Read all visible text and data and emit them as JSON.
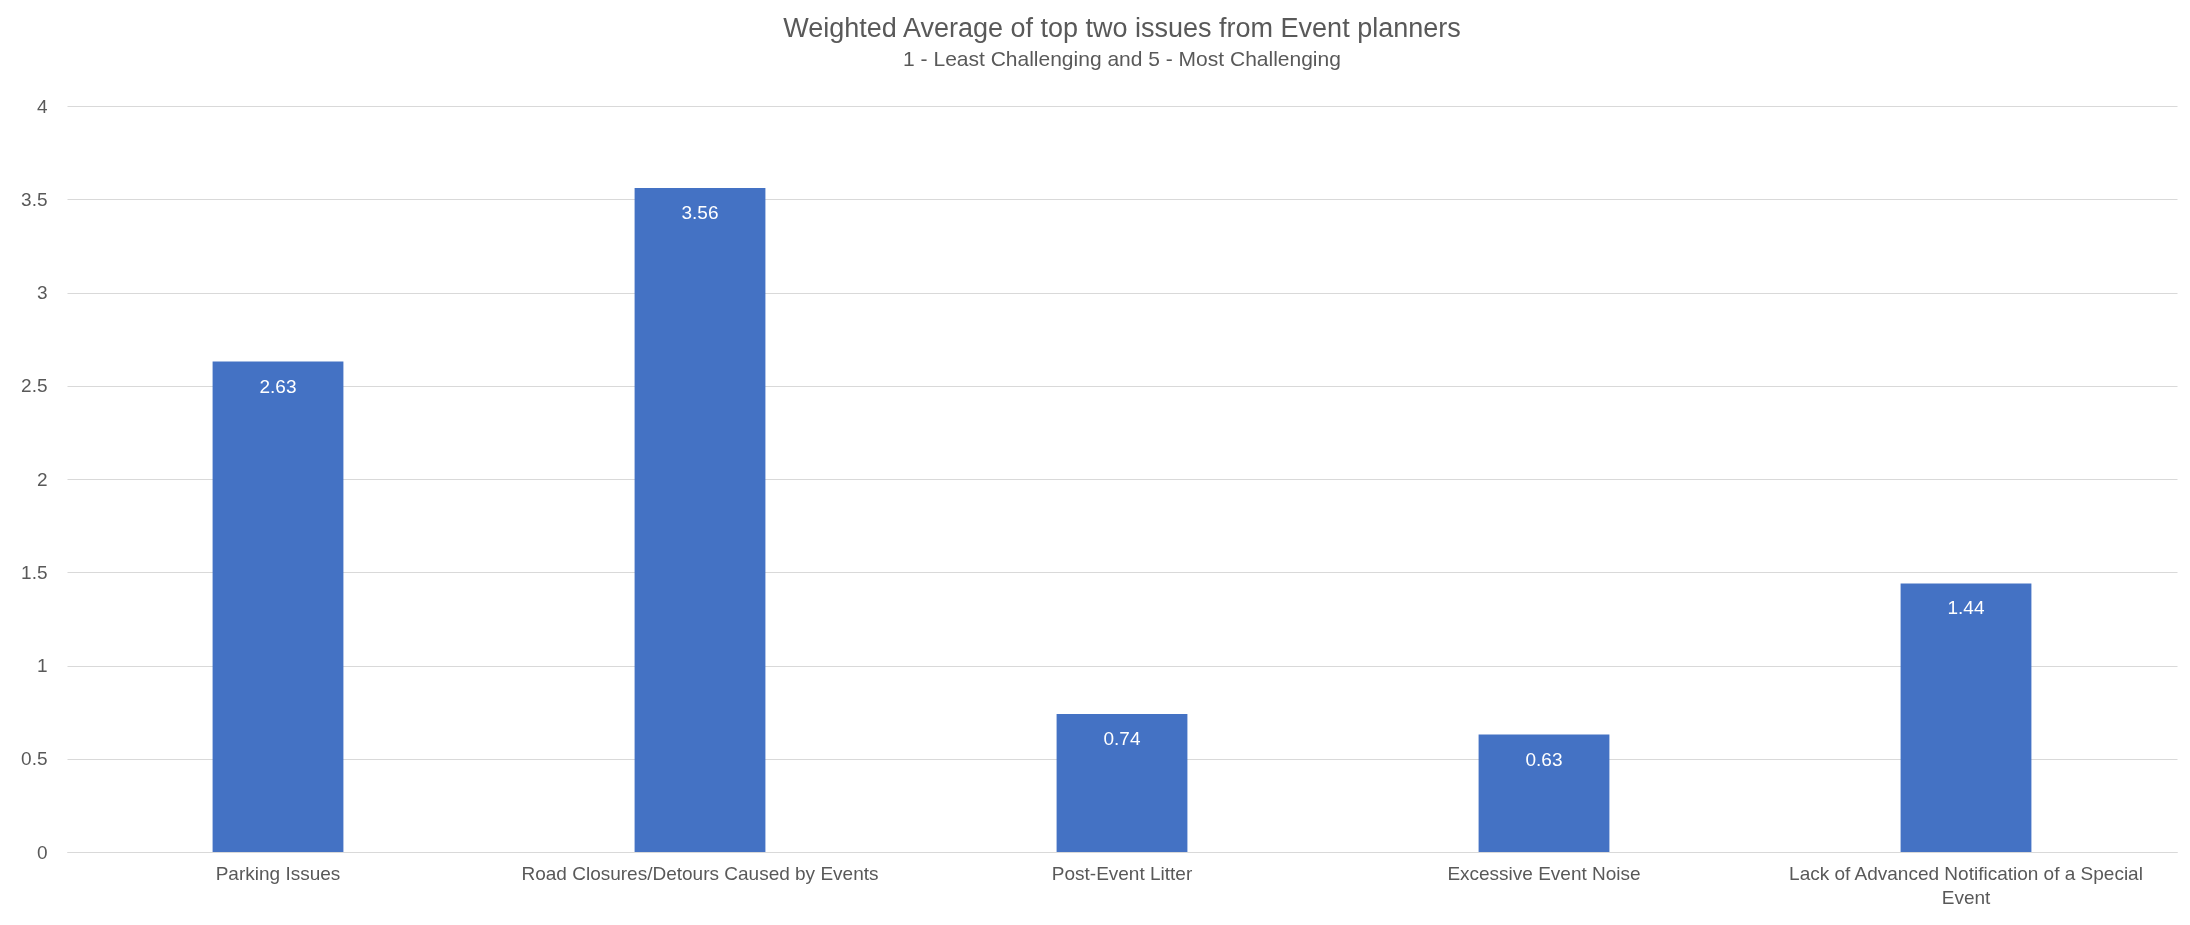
{
  "chart_data": {
    "type": "bar",
    "title": "Weighted Average of top two issues from Event planners",
    "subtitle": "1 - Least Challenging and 5 - Most Challenging",
    "categories": [
      "Parking Issues",
      "Road Closures/Detours Caused by Events",
      "Post-Event Litter",
      "Excessive Event Noise",
      "Lack of Advanced Notification of a Special Event"
    ],
    "values": [
      2.63,
      3.56,
      0.74,
      0.63,
      1.44
    ],
    "color": "#4472c4",
    "ylim": [
      0,
      4
    ],
    "yticks": [
      0,
      0.5,
      1,
      1.5,
      2,
      2.5,
      3,
      3.5,
      4
    ],
    "grid": "y",
    "data_labels": true
  }
}
